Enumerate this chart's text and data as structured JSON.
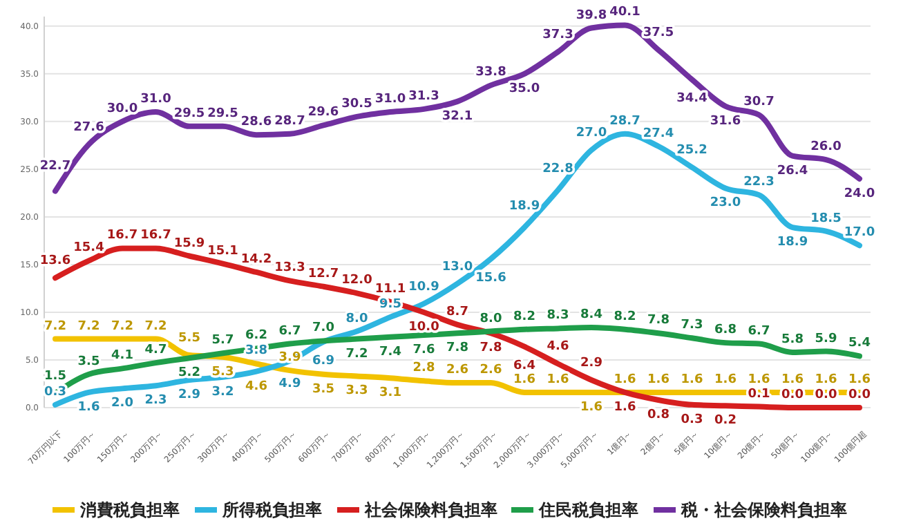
{
  "chart_data": {
    "type": "line",
    "categories": [
      "70万円以下",
      "100万円～",
      "150万円～",
      "200万円～",
      "250万円～",
      "300万円～",
      "400万円～",
      "500万円～",
      "600万円～",
      "700万円～",
      "800万円～",
      "1,000万円～",
      "1,200万円～",
      "1,500万円～",
      "2,000万円～",
      "3,000万円～",
      "5,000万円～",
      "1億円～",
      "2億円～",
      "5億円～",
      "10億円～",
      "20億円～",
      "50億円～",
      "100億円～",
      "100億円超"
    ],
    "series": [
      {
        "name": "消費税負担率",
        "color": "#f2c200",
        "values": [
          7.2,
          7.2,
          7.2,
          7.2,
          5.5,
          5.3,
          4.6,
          3.9,
          3.5,
          3.3,
          3.1,
          2.8,
          2.6,
          2.6,
          1.6,
          1.6,
          1.6,
          1.6,
          1.6,
          1.6,
          1.6,
          1.6,
          1.6,
          1.6,
          1.6
        ],
        "value_labels": [
          "7.2",
          "7.2",
          "7.2",
          "7.2",
          "5.5",
          "5.3",
          "4.6",
          "3.9",
          "3.5",
          "3.3",
          "3.1",
          "2.8",
          "2.6",
          "2.6",
          "1.6",
          "1.6",
          "1.6",
          "1.6",
          "1.6",
          "1.6",
          "1.6",
          "1.6",
          "1.6",
          "1.6",
          "1.6"
        ]
      },
      {
        "name": "所得税負担率",
        "color": "#2eb5e0",
        "values": [
          0.3,
          1.6,
          2.0,
          2.3,
          2.9,
          3.2,
          3.8,
          4.9,
          6.9,
          8.0,
          9.5,
          10.9,
          13.0,
          15.6,
          18.9,
          22.8,
          27.0,
          28.7,
          27.4,
          25.2,
          23.0,
          22.3,
          18.9,
          18.5,
          17.0
        ],
        "value_labels": [
          "0.3",
          "1.6",
          "2.0",
          "2.3",
          "2.9",
          "3.2",
          "3.8",
          "4.9",
          "6.9",
          "8.0",
          "9.5",
          "10.9",
          "13.0",
          "15.6",
          "18.9",
          "22.8",
          "27.0",
          "28.7",
          "27.4",
          "25.2",
          "23.0",
          "22.3",
          "18.9",
          "18.5",
          "17.0"
        ]
      },
      {
        "name": "社会保険料負担率",
        "color": "#d61f1f",
        "values": [
          13.6,
          15.4,
          16.7,
          16.7,
          15.9,
          15.1,
          14.2,
          13.3,
          12.7,
          12.0,
          11.1,
          10.0,
          8.7,
          7.8,
          6.4,
          4.6,
          2.9,
          1.6,
          0.8,
          0.3,
          0.2,
          0.1,
          0.0,
          0.0,
          0.0
        ],
        "value_labels": [
          "13.6",
          "15.4",
          "16.7",
          "16.7",
          "15.9",
          "15.1",
          "14.2",
          "13.3",
          "12.7",
          "12.0",
          "11.1",
          "10.0",
          "8.7",
          "7.8",
          "6.4",
          "4.6",
          "2.9",
          "1.6",
          "0.8",
          "0.3",
          "0.2",
          "0.1",
          "0.0",
          "0.0",
          "0.0"
        ]
      },
      {
        "name": "住民税負担率",
        "color": "#1f9e4a",
        "values": [
          1.5,
          3.5,
          4.1,
          4.7,
          5.2,
          5.7,
          6.2,
          6.7,
          7.0,
          7.2,
          7.4,
          7.6,
          7.8,
          8.0,
          8.2,
          8.3,
          8.4,
          8.2,
          7.8,
          7.3,
          6.8,
          6.7,
          5.8,
          5.9,
          5.4
        ],
        "value_labels": [
          "1.5",
          "3.5",
          "4.1",
          "4.7",
          "5.2",
          "5.7",
          "6.2",
          "6.7",
          "7.0",
          "7.2",
          "7.4",
          "7.6",
          "7.8",
          "8.0",
          "8.2",
          "8.3",
          "8.4",
          "8.2",
          "7.8",
          "7.3",
          "6.8",
          "6.7",
          "5.8",
          "5.9",
          "5.4"
        ]
      },
      {
        "name": "税・社会保険料負担率",
        "color": "#7030a0",
        "values": [
          22.7,
          27.6,
          30.0,
          31.0,
          29.5,
          29.5,
          28.6,
          28.7,
          29.6,
          30.5,
          31.0,
          31.3,
          32.1,
          33.8,
          35.0,
          37.3,
          39.8,
          40.1,
          37.5,
          34.4,
          31.6,
          30.7,
          26.4,
          26.0,
          24.0
        ],
        "value_labels": [
          "22.7",
          "27.6",
          "30.0",
          "31.0",
          "29.5",
          "29.5",
          "28.6",
          "28.7",
          "29.6",
          "30.5",
          "31.0",
          "31.3",
          "32.1",
          "33.8",
          "35.0",
          "37.3",
          "39.8",
          "40.1",
          "37.5",
          "34.4",
          "31.6",
          "30.7",
          "26.4",
          "26.0",
          "24.0"
        ]
      }
    ],
    "ylim": [
      0,
      41
    ],
    "yticks": [
      {
        "value": 0,
        "label": "0.0"
      },
      {
        "value": 5,
        "label": "5.0"
      },
      {
        "value": 10,
        "label": "10.0"
      },
      {
        "value": 15,
        "label": "15.0"
      },
      {
        "value": 20,
        "label": "20.0"
      },
      {
        "value": 25,
        "label": "25.0"
      },
      {
        "value": 30,
        "label": "30.0"
      },
      {
        "value": 35,
        "label": "35.0"
      },
      {
        "value": 40,
        "label": "40.0"
      }
    ],
    "grid": "y",
    "legend": "bottom",
    "marker": "none",
    "line_style": "solid"
  }
}
